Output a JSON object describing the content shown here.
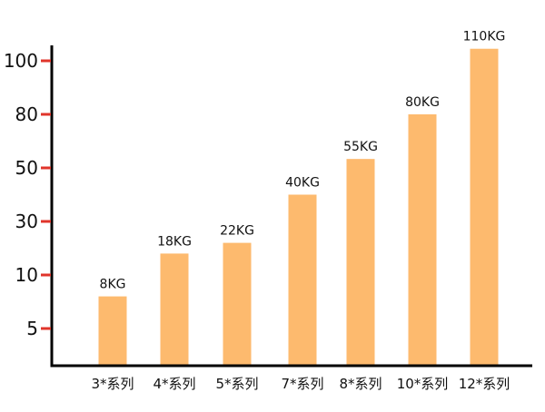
{
  "chart_data": {
    "type": "bar",
    "title": "",
    "xlabel": "",
    "ylabel": "",
    "categories": [
      "3*系列",
      "4*系列",
      "5*系列",
      "7*系列",
      "8*系列",
      "10*系列",
      "12*系列"
    ],
    "values": [
      8,
      18,
      22,
      40,
      55,
      80,
      110
    ],
    "data_labels": [
      "8KG",
      "18KG",
      "22KG",
      "40KG",
      "55KG",
      "80KG",
      "110KG"
    ],
    "y_ticks": [
      5,
      10,
      30,
      50,
      80,
      100
    ],
    "y_tick_labels": [
      "5",
      "10",
      "30",
      "50",
      "80",
      "100"
    ],
    "y_scale": "non-uniform (ticks evenly spaced)",
    "grid": false,
    "legend": "none",
    "colors": {
      "bar": "#FDBA6E",
      "axis": "#000000",
      "tick": "#E0352B"
    }
  }
}
